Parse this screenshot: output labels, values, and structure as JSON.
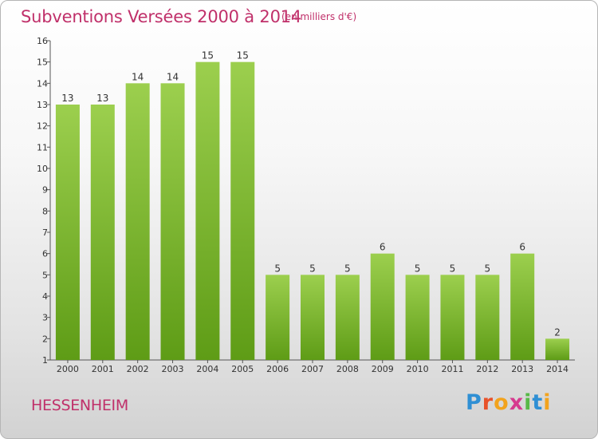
{
  "header": {
    "title": "Subventions Versées 2000 à 2014",
    "subtitle": "(en milliers d'€)"
  },
  "footer": {
    "commune": "HESSENHEIM",
    "logo_text": "Proxiti"
  },
  "colors": {
    "accent": "#c0306a",
    "bar_top": "#9ccf4e",
    "bar_bottom": "#5e9c16"
  },
  "chart_data": {
    "type": "bar",
    "title": "Subventions Versées 2000 à 2014",
    "subtitle": "(en milliers d'€)",
    "categories": [
      "2000",
      "2001",
      "2002",
      "2003",
      "2004",
      "2005",
      "2006",
      "2007",
      "2008",
      "2009",
      "2010",
      "2011",
      "2012",
      "2013",
      "2014"
    ],
    "values": [
      13,
      13,
      14,
      14,
      15,
      15,
      5,
      5,
      5,
      6,
      5,
      5,
      5,
      6,
      2
    ],
    "ylim": [
      1,
      16
    ],
    "yticks": [
      1,
      2,
      3,
      4,
      5,
      6,
      7,
      8,
      9,
      10,
      11,
      12,
      13,
      14,
      15,
      16
    ],
    "xlabel": "",
    "ylabel": "",
    "grid": false,
    "data_labels": true
  }
}
